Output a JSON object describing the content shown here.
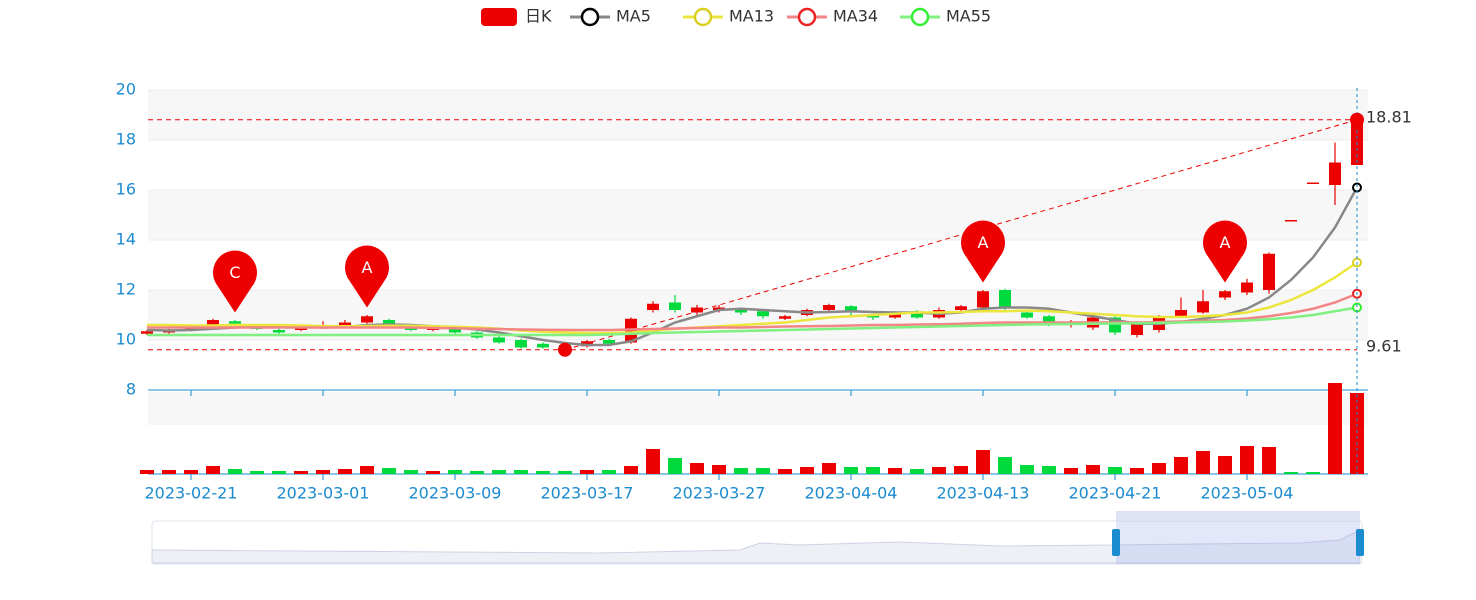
{
  "chart_data": {
    "type": "candlestick",
    "categories": [
      null,
      null,
      "2023-02-21",
      null,
      null,
      null,
      null,
      null,
      "2023-03-01",
      null,
      null,
      null,
      null,
      null,
      "2023-03-09",
      null,
      null,
      null,
      null,
      null,
      "2023-03-17",
      null,
      null,
      null,
      null,
      null,
      "2023-03-27",
      null,
      null,
      null,
      null,
      null,
      "2023-04-04",
      null,
      null,
      null,
      null,
      null,
      "2023-04-13",
      null,
      null,
      null,
      null,
      null,
      "2023-04-21",
      null,
      null,
      null,
      null,
      null,
      "2023-05-04",
      null,
      null,
      null,
      null,
      null
    ],
    "candles": {
      "name": "日K",
      "up_color": "#ec0000",
      "down_color": "#00da3c",
      "open": [
        10.25,
        10.3,
        10.4,
        10.5,
        10.75,
        10.5,
        10.4,
        10.4,
        10.5,
        10.6,
        10.7,
        10.8,
        10.5,
        10.4,
        10.45,
        10.3,
        10.1,
        10.0,
        9.85,
        9.8,
        9.75,
        10.0,
        9.9,
        11.2,
        11.5,
        11.1,
        11.2,
        11.25,
        11.15,
        10.85,
        11.0,
        11.2,
        11.35,
        11.0,
        10.9,
        11.15,
        10.9,
        11.2,
        11.3,
        12.0,
        11.1,
        10.95,
        10.6,
        10.5,
        10.9,
        10.2,
        10.4,
        10.95,
        11.1,
        11.7,
        11.9,
        12.0,
        14.8,
        16.3,
        16.2,
        17.0
      ],
      "close": [
        10.35,
        10.4,
        10.5,
        10.8,
        10.65,
        10.45,
        10.3,
        10.5,
        10.6,
        10.7,
        10.95,
        10.6,
        10.4,
        10.5,
        10.3,
        10.1,
        9.9,
        9.7,
        9.7,
        9.7,
        9.95,
        9.85,
        10.85,
        11.45,
        11.2,
        11.3,
        11.3,
        11.1,
        10.95,
        10.95,
        11.2,
        11.4,
        11.1,
        10.9,
        11.1,
        10.9,
        11.2,
        11.35,
        11.95,
        11.3,
        10.9,
        10.6,
        10.7,
        10.9,
        10.3,
        10.7,
        10.95,
        11.2,
        11.55,
        11.95,
        12.3,
        13.45,
        14.8,
        16.3,
        17.1,
        18.81
      ],
      "low": [
        10.2,
        10.25,
        10.35,
        10.45,
        10.6,
        10.4,
        10.25,
        10.35,
        10.45,
        10.55,
        10.65,
        10.55,
        10.35,
        10.35,
        10.25,
        10.05,
        9.85,
        9.65,
        9.65,
        9.61,
        9.7,
        9.8,
        9.85,
        11.1,
        11.1,
        11.0,
        11.1,
        11.0,
        10.85,
        10.8,
        10.95,
        11.15,
        11.0,
        10.8,
        10.85,
        10.85,
        10.85,
        11.15,
        11.25,
        11.2,
        10.85,
        10.55,
        10.5,
        10.4,
        10.2,
        10.1,
        10.3,
        10.9,
        11.05,
        11.6,
        11.8,
        11.85,
        14.8,
        16.3,
        15.4,
        17.0
      ],
      "high": [
        10.4,
        10.45,
        10.55,
        10.85,
        10.8,
        10.55,
        10.45,
        10.55,
        10.75,
        10.8,
        11.0,
        10.85,
        10.55,
        10.55,
        10.5,
        10.35,
        10.15,
        10.05,
        9.9,
        9.85,
        10.0,
        10.05,
        10.9,
        11.55,
        11.8,
        11.4,
        11.4,
        11.3,
        11.2,
        11.0,
        11.25,
        11.45,
        11.4,
        11.05,
        11.15,
        11.2,
        11.3,
        11.4,
        12.0,
        12.05,
        11.15,
        11.0,
        10.8,
        11.0,
        10.95,
        10.75,
        11.0,
        11.7,
        12.0,
        12.0,
        12.45,
        13.5,
        14.8,
        16.3,
        17.9,
        18.81
      ]
    },
    "series": [
      {
        "name": "MA5",
        "color": "#888888",
        "legend_color": "#000000",
        "values": [
          10.4,
          10.38,
          10.4,
          10.45,
          10.5,
          10.53,
          10.55,
          10.53,
          10.5,
          10.52,
          10.6,
          10.62,
          10.6,
          10.55,
          10.5,
          10.42,
          10.3,
          10.15,
          10.0,
          9.88,
          9.8,
          9.8,
          9.95,
          10.3,
          10.7,
          10.95,
          11.2,
          11.25,
          11.2,
          11.15,
          11.1,
          11.12,
          11.15,
          11.12,
          11.1,
          11.1,
          11.05,
          11.1,
          11.25,
          11.3,
          11.3,
          11.25,
          11.1,
          10.95,
          10.8,
          10.65,
          10.65,
          10.72,
          10.85,
          11.0,
          11.25,
          11.7,
          12.4,
          13.3,
          14.5,
          16.1
        ]
      },
      {
        "name": "MA13",
        "color": "#ece63c",
        "legend_color": "#d8d020",
        "values": [
          10.6,
          10.6,
          10.58,
          10.58,
          10.6,
          10.6,
          10.6,
          10.58,
          10.56,
          10.55,
          10.56,
          10.57,
          10.57,
          10.55,
          10.53,
          10.5,
          10.45,
          10.38,
          10.33,
          10.3,
          10.28,
          10.28,
          10.3,
          10.38,
          10.45,
          10.5,
          10.55,
          10.6,
          10.65,
          10.7,
          10.8,
          10.9,
          10.95,
          11.0,
          11.05,
          11.1,
          11.1,
          11.12,
          11.15,
          11.15,
          11.18,
          11.15,
          11.1,
          11.05,
          11.0,
          10.95,
          10.92,
          10.92,
          10.95,
          11.0,
          11.1,
          11.3,
          11.6,
          12.0,
          12.5,
          13.1
        ]
      },
      {
        "name": "MA34",
        "color": "#f28585",
        "legend_color": "#ee2222",
        "values": [
          10.5,
          10.5,
          10.5,
          10.5,
          10.5,
          10.5,
          10.5,
          10.5,
          10.5,
          10.5,
          10.5,
          10.5,
          10.5,
          10.48,
          10.47,
          10.45,
          10.44,
          10.42,
          10.41,
          10.4,
          10.4,
          10.4,
          10.42,
          10.44,
          10.46,
          10.48,
          10.5,
          10.5,
          10.52,
          10.54,
          10.55,
          10.56,
          10.58,
          10.6,
          10.6,
          10.62,
          10.63,
          10.65,
          10.68,
          10.7,
          10.7,
          10.7,
          10.7,
          10.7,
          10.7,
          10.7,
          10.72,
          10.74,
          10.77,
          10.8,
          10.86,
          10.95,
          11.08,
          11.25,
          11.5,
          11.85
        ]
      },
      {
        "name": "MA55",
        "color": "#80f080",
        "legend_color": "#33ee33",
        "values": [
          10.2,
          10.2,
          10.2,
          10.2,
          10.2,
          10.2,
          10.2,
          10.2,
          10.2,
          10.2,
          10.2,
          10.2,
          10.2,
          10.2,
          10.2,
          10.2,
          10.2,
          10.2,
          10.2,
          10.2,
          10.2,
          10.22,
          10.25,
          10.28,
          10.3,
          10.32,
          10.34,
          10.36,
          10.38,
          10.4,
          10.42,
          10.44,
          10.46,
          10.48,
          10.5,
          10.52,
          10.54,
          10.56,
          10.58,
          10.6,
          10.62,
          10.63,
          10.64,
          10.65,
          10.66,
          10.67,
          10.68,
          10.7,
          10.72,
          10.74,
          10.78,
          10.83,
          10.9,
          11.0,
          11.15,
          11.3
        ]
      }
    ],
    "volume": [
      4,
      4,
      4,
      8,
      5,
      3,
      3,
      3,
      4,
      5,
      8,
      6,
      4,
      3,
      4,
      3,
      4,
      4,
      3,
      3,
      4,
      4,
      8,
      25,
      16,
      11,
      9,
      6,
      6,
      5,
      7,
      11,
      7,
      7,
      6,
      5,
      7,
      8,
      24,
      17,
      9,
      8,
      6,
      9,
      7,
      6,
      11,
      17,
      23,
      18,
      28,
      27,
      2,
      2,
      91,
      81
    ],
    "volume_ylim": [
      0,
      90
    ],
    "mark_lines": [
      {
        "value": 18.81
      },
      {
        "value": 9.61
      }
    ],
    "markers": [
      {
        "label": "C",
        "x": 4,
        "value": 11.1
      },
      {
        "label": "A",
        "x": 10,
        "value": 11.3
      },
      {
        "label": "A",
        "x": 38,
        "value": 12.3
      },
      {
        "label": "A",
        "x": 49,
        "value": 12.3
      }
    ],
    "ylim": [
      8,
      20
    ],
    "yticks": [
      8,
      10,
      12,
      14,
      16,
      18,
      20
    ]
  }
}
